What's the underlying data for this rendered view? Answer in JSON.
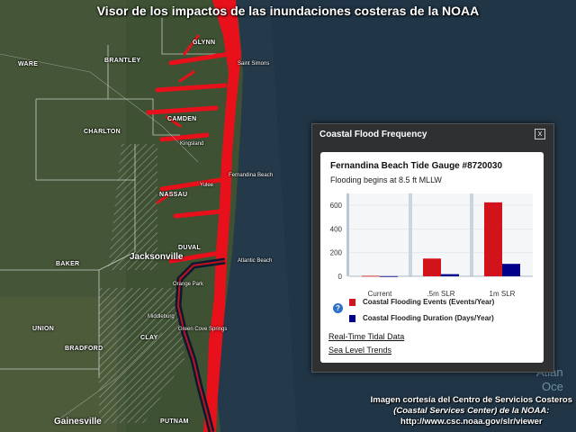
{
  "viewer_title": "Visor de los impactos de las inundaciones costeras de la NOAA",
  "map": {
    "county_labels": [
      "GLYNN",
      "BRANTLEY",
      "WARE",
      "CAMDEN",
      "CHARLTON",
      "NASSAU",
      "DUVAL",
      "BAKER",
      "UNION",
      "BRADFORD",
      "CLAY",
      "PUTNAM"
    ],
    "city_labels": [
      "Saint Simons",
      "Kingsland",
      "Yulee",
      "Fernandina Beach",
      "Atlantic Beach",
      "Orange Park",
      "Middleburg",
      "Green Cove Springs",
      "Gainesville"
    ],
    "big_city": "Jacksonville",
    "ocean_label": [
      "Atlan",
      "Oce"
    ],
    "flood_color": "#e8101a"
  },
  "panel": {
    "title": "Coastal Flood Frequency",
    "close_symbol": "x",
    "gauge_title": "Fernandina Beach Tide Gauge #8720030",
    "flooding_text": "Flooding begins at 8.5 ft MLLW",
    "legend": [
      {
        "label": "Coastal Flooding Events (Events/Year)",
        "color": "#d3131b"
      },
      {
        "label": "Coastal Flooding Duration (Days/Year)",
        "color": "#00008b"
      }
    ],
    "info_symbol": "?",
    "links": [
      "Real-Time Tidal Data",
      "Sea Level Trends"
    ]
  },
  "chart_data": {
    "type": "bar",
    "categories": [
      "Current",
      ".5m SLR",
      "1m SLR"
    ],
    "series": [
      {
        "name": "Coastal Flooding Events (Events/Year)",
        "values": [
          4,
          150,
          625
        ],
        "color": "#d3131b"
      },
      {
        "name": "Coastal Flooding Duration (Days/Year)",
        "values": [
          1,
          18,
          105
        ],
        "color": "#00008b"
      }
    ],
    "yticks": [
      "0",
      "200",
      "400",
      "600"
    ],
    "ylim": [
      0,
      700
    ],
    "grid": true
  },
  "credit": {
    "line1": "Imagen cortesía del Centro de Servicios Costeros",
    "line2": "(Coastal Services Center) de la NOAA:",
    "line3": "http://www.csc.noaa.gov/slr/viewer"
  }
}
